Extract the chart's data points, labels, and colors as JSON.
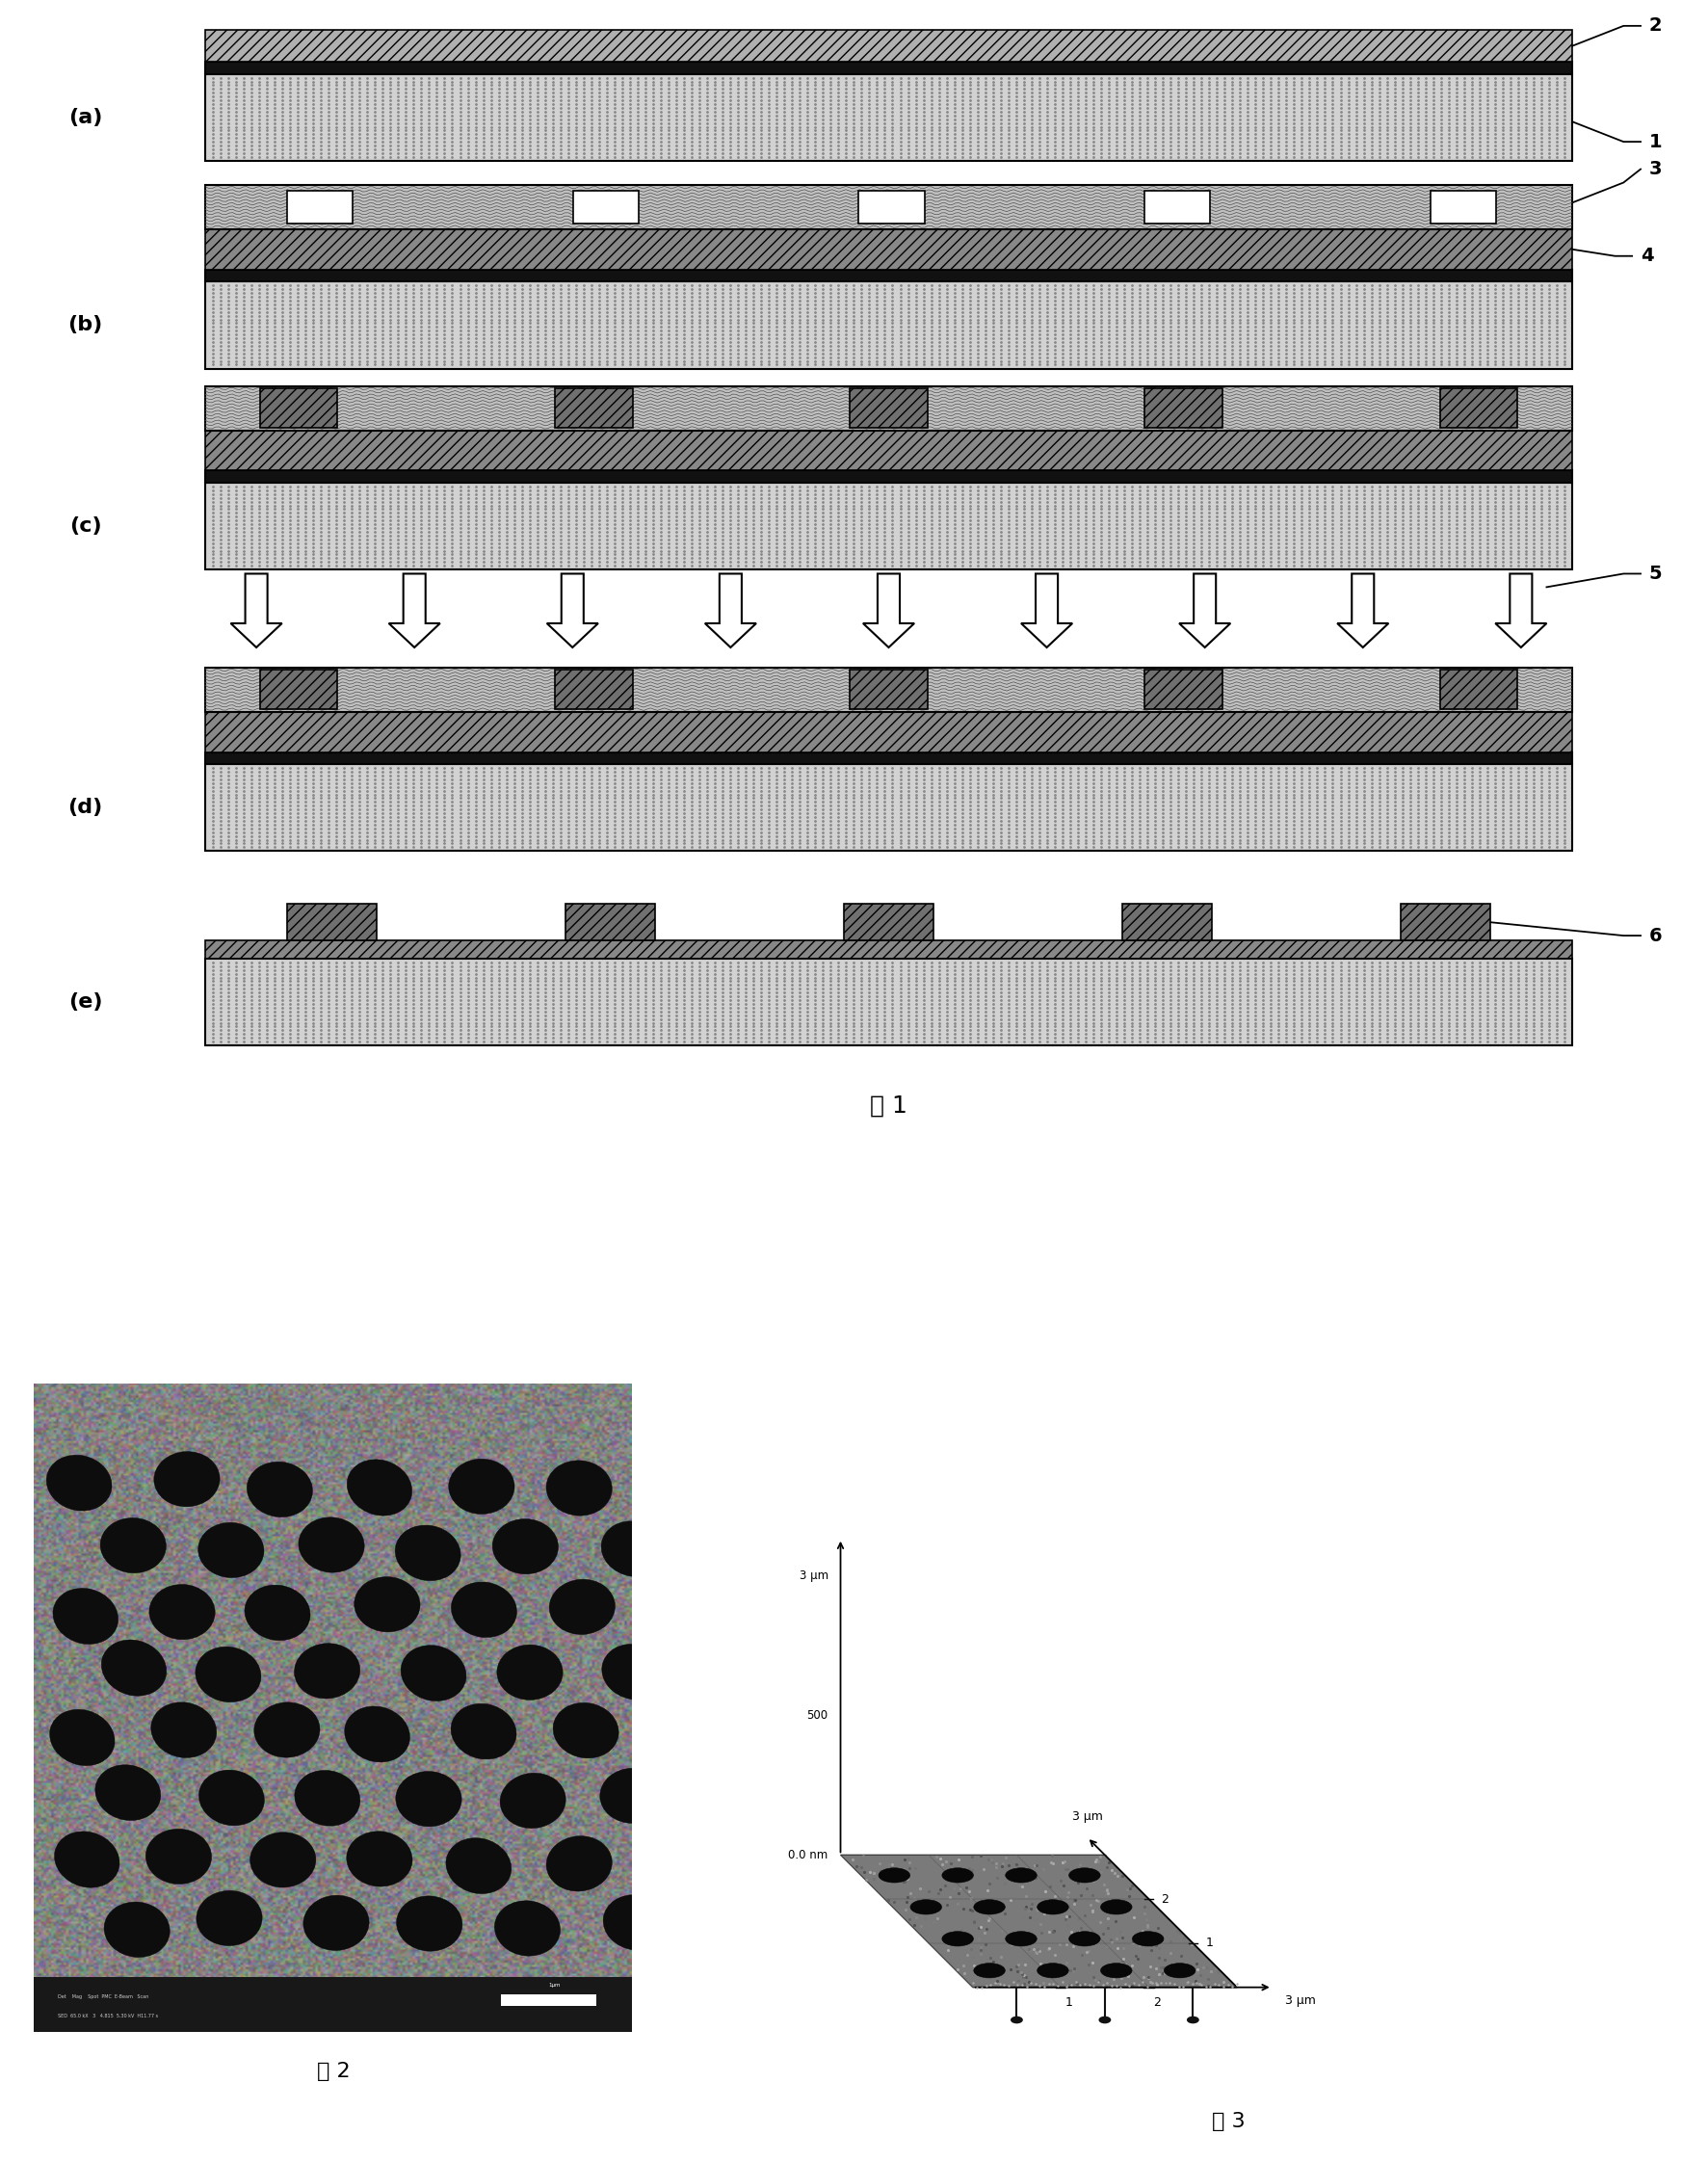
{
  "fig_width": 17.74,
  "fig_height": 22.44,
  "bg_color": "#ffffff",
  "caption_fig1": "图 1",
  "caption_fig2": "图 2",
  "caption_fig3": "图 3",
  "panel_labels": [
    "(a)",
    "(b)",
    "(c)",
    "(d)",
    "(e)"
  ],
  "ref_numbers": [
    "1",
    "2",
    "3",
    "4",
    "5",
    "6"
  ],
  "substrate_dot_bg": "#d0d0d0",
  "substrate_dot_color": "#888888",
  "hatch_bg": "#888888",
  "wavy_bg": "#c8c8c8",
  "wavy_color": "#606060",
  "black_layer": "#111111",
  "white_block": "#ffffff",
  "arrow_color": "#000000"
}
